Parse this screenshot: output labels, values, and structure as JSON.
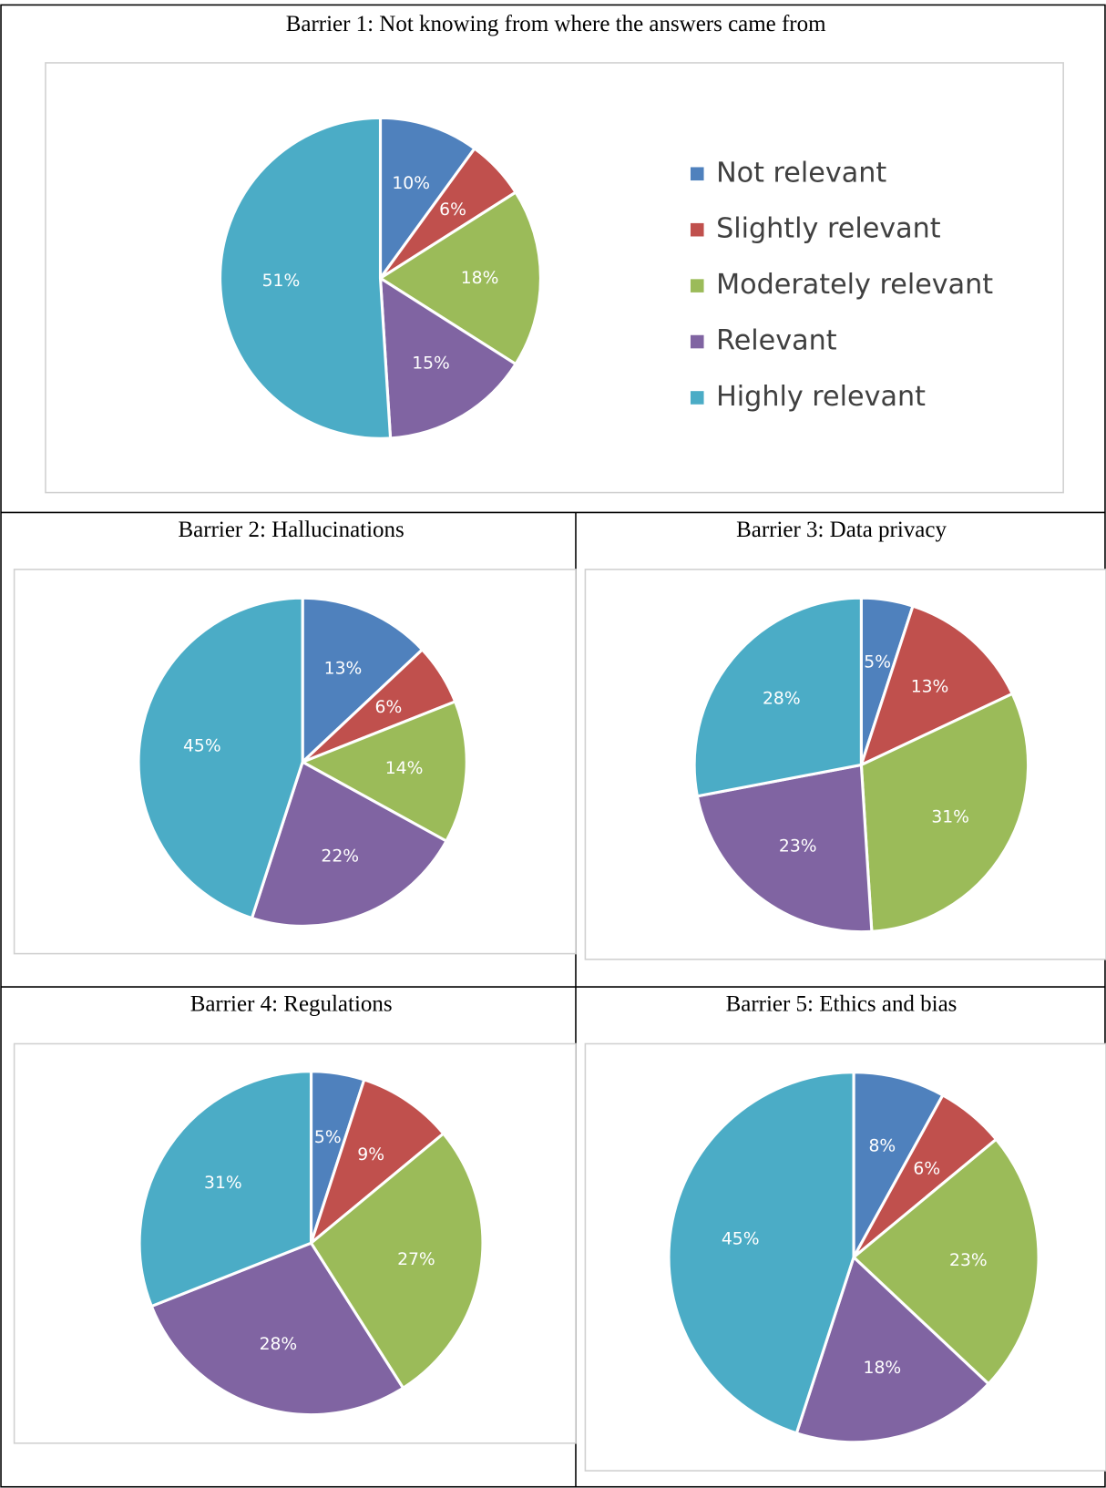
{
  "chart_data": [
    {
      "type": "pie",
      "title": "Barrier 1: Not knowing from where the answers came from",
      "categories": [
        "Not relevant",
        "Slightly relevant",
        "Moderately relevant",
        "Relevant",
        "Highly relevant"
      ],
      "values": [
        10,
        6,
        18,
        15,
        51
      ],
      "value_labels": [
        "10%",
        "6%",
        "18%",
        "15%",
        "51%"
      ],
      "colors": [
        "#4f81bd",
        "#c0504d",
        "#9bbb59",
        "#8064a2",
        "#4bacc6"
      ],
      "legend": "right"
    },
    {
      "type": "pie",
      "title": "Barrier 2: Hallucinations",
      "values": [
        13,
        6,
        14,
        22,
        45
      ],
      "value_labels": [
        "13%",
        "6%",
        "14%",
        "22%",
        "45%"
      ],
      "colors": [
        "#4f81bd",
        "#c0504d",
        "#9bbb59",
        "#8064a2",
        "#4bacc6"
      ]
    },
    {
      "type": "pie",
      "title": "Barrier 3: Data privacy",
      "values": [
        5,
        13,
        31,
        23,
        28
      ],
      "value_labels": [
        "5%",
        "13%",
        "31%",
        "23%",
        "28%"
      ],
      "colors": [
        "#4f81bd",
        "#c0504d",
        "#9bbb59",
        "#8064a2",
        "#4bacc6"
      ]
    },
    {
      "type": "pie",
      "title": "Barrier 4: Regulations",
      "values": [
        5,
        9,
        27,
        28,
        31
      ],
      "value_labels": [
        "5%",
        "9%",
        "27%",
        "28%",
        "31%"
      ],
      "colors": [
        "#4f81bd",
        "#c0504d",
        "#9bbb59",
        "#8064a2",
        "#4bacc6"
      ]
    },
    {
      "type": "pie",
      "title": "Barrier 5: Ethics and bias",
      "values": [
        8,
        6,
        23,
        18,
        45
      ],
      "value_labels": [
        "8%",
        "6%",
        "23%",
        "18%",
        "45%"
      ],
      "colors": [
        "#4f81bd",
        "#c0504d",
        "#9bbb59",
        "#8064a2",
        "#4bacc6"
      ]
    }
  ]
}
